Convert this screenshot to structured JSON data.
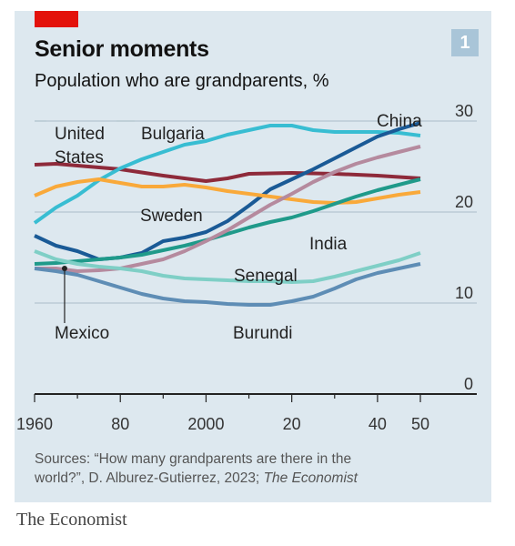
{
  "header": {
    "title": "Senior moments",
    "subtitle": "Population who are grandparents, %",
    "badge": "1"
  },
  "footer": {
    "sources_line1": "Sources: “How many grandparents are there in the",
    "sources_line2_pre": "world?”, D. Alburez-Gutierrez, 2023; ",
    "sources_line2_ital": "The Economist",
    "brand": "The Economist"
  },
  "colors": {
    "background": "#dde8ef",
    "red_tab": "#e3120b",
    "badge": "#a9c5d8",
    "China": "#1a5a96",
    "Bulgaria": "#38bdd2",
    "United States": "#8e2a3a",
    "Sweden": "#f9a93a",
    "India": "#1f9a8a",
    "Senegal": "#7fcfc6",
    "Mexico": "#b58a9e",
    "Burundi": "#5e8db5"
  },
  "chart_data": {
    "type": "line",
    "title": "Senior moments",
    "subtitle": "Population who are grandparents, %",
    "x_range": [
      1960,
      2050
    ],
    "ylim": [
      0,
      30
    ],
    "y_ticks": [
      0,
      10,
      20,
      30
    ],
    "x_ticks": [
      1960,
      1980,
      2000,
      2020,
      2040,
      2050
    ],
    "x_tick_labels": [
      "1960",
      "80",
      "2000",
      "20",
      "40",
      "50"
    ],
    "y_tick_labels": [
      "0",
      "10",
      "20",
      "30"
    ],
    "grid": "horizontal",
    "series": [
      {
        "name": "United States",
        "label_lines": [
          "United",
          "States"
        ],
        "x": [
          1960,
          1965,
          1970,
          1980,
          1990,
          2000,
          2005,
          2010,
          2020,
          2030,
          2040,
          2050
        ],
        "values": [
          25.2,
          25.3,
          25.1,
          24.7,
          24.0,
          23.4,
          23.7,
          24.2,
          24.3,
          24.2,
          24.0,
          23.7
        ]
      },
      {
        "name": "Bulgaria",
        "label_lines": [
          "Bulgaria"
        ],
        "x": [
          1960,
          1965,
          1970,
          1975,
          1980,
          1985,
          1990,
          1995,
          2000,
          2005,
          2010,
          2015,
          2020,
          2025,
          2030,
          2035,
          2040,
          2045,
          2050
        ],
        "values": [
          18.8,
          20.5,
          21.8,
          23.5,
          24.8,
          25.8,
          26.6,
          27.4,
          27.8,
          28.5,
          29.0,
          29.5,
          29.5,
          29.0,
          28.8,
          28.8,
          28.8,
          28.7,
          28.4
        ]
      },
      {
        "name": "China",
        "label_lines": [
          "China"
        ],
        "x": [
          1960,
          1965,
          1970,
          1975,
          1980,
          1985,
          1990,
          1995,
          2000,
          2005,
          2010,
          2015,
          2020,
          2025,
          2030,
          2035,
          2040,
          2045,
          2050
        ],
        "values": [
          17.4,
          16.3,
          15.7,
          14.8,
          15.0,
          15.5,
          16.8,
          17.2,
          17.8,
          19.0,
          20.7,
          22.5,
          23.6,
          24.7,
          25.9,
          27.1,
          28.3,
          29.1,
          29.8
        ]
      },
      {
        "name": "Sweden",
        "label_lines": [
          "Sweden"
        ],
        "x": [
          1960,
          1965,
          1970,
          1975,
          1980,
          1985,
          1990,
          1995,
          2000,
          2005,
          2010,
          2015,
          2020,
          2025,
          2030,
          2035,
          2040,
          2045,
          2050
        ],
        "values": [
          21.8,
          22.8,
          23.3,
          23.6,
          23.2,
          22.8,
          22.8,
          23.0,
          22.7,
          22.3,
          22.0,
          21.7,
          21.4,
          21.1,
          21.0,
          21.1,
          21.5,
          21.9,
          22.2
        ]
      },
      {
        "name": "India",
        "label_lines": [
          "India"
        ],
        "x": [
          1960,
          1965,
          1970,
          1975,
          1980,
          1985,
          1990,
          1995,
          2000,
          2005,
          2010,
          2015,
          2020,
          2025,
          2030,
          2035,
          2040,
          2045,
          2050
        ],
        "values": [
          14.3,
          14.4,
          14.6,
          14.8,
          15.0,
          15.3,
          15.8,
          16.3,
          16.9,
          17.6,
          18.3,
          18.9,
          19.4,
          20.1,
          20.9,
          21.7,
          22.4,
          23.0,
          23.6
        ]
      },
      {
        "name": "Mexico",
        "label_lines": [
          "Mexico"
        ],
        "x": [
          1960,
          1965,
          1970,
          1975,
          1980,
          1985,
          1990,
          1995,
          2000,
          2005,
          2010,
          2015,
          2020,
          2025,
          2030,
          2035,
          2040,
          2045,
          2050
        ],
        "values": [
          13.8,
          13.8,
          13.5,
          13.6,
          13.8,
          14.3,
          14.8,
          15.7,
          16.8,
          18.0,
          19.4,
          20.8,
          22.0,
          23.3,
          24.4,
          25.3,
          26.0,
          26.6,
          27.2
        ]
      },
      {
        "name": "Senegal",
        "label_lines": [
          "Senegal"
        ],
        "x": [
          1960,
          1965,
          1970,
          1975,
          1980,
          1985,
          1990,
          1995,
          2000,
          2005,
          2010,
          2015,
          2020,
          2025,
          2030,
          2035,
          2040,
          2045,
          2050
        ],
        "values": [
          15.7,
          14.8,
          14.3,
          14.0,
          13.8,
          13.5,
          13.0,
          12.7,
          12.6,
          12.5,
          12.4,
          12.4,
          12.3,
          12.4,
          12.9,
          13.5,
          14.1,
          14.7,
          15.5
        ]
      },
      {
        "name": "Burundi",
        "label_lines": [
          "Burundi"
        ],
        "x": [
          1960,
          1965,
          1970,
          1975,
          1980,
          1985,
          1990,
          1995,
          2000,
          2005,
          2010,
          2015,
          2020,
          2025,
          2030,
          2035,
          2040,
          2045,
          2050
        ],
        "values": [
          13.8,
          13.5,
          13.1,
          12.4,
          11.7,
          11.0,
          10.5,
          10.2,
          10.1,
          9.9,
          9.8,
          9.8,
          10.2,
          10.7,
          11.6,
          12.6,
          13.3,
          13.8,
          14.3
        ]
      }
    ]
  }
}
